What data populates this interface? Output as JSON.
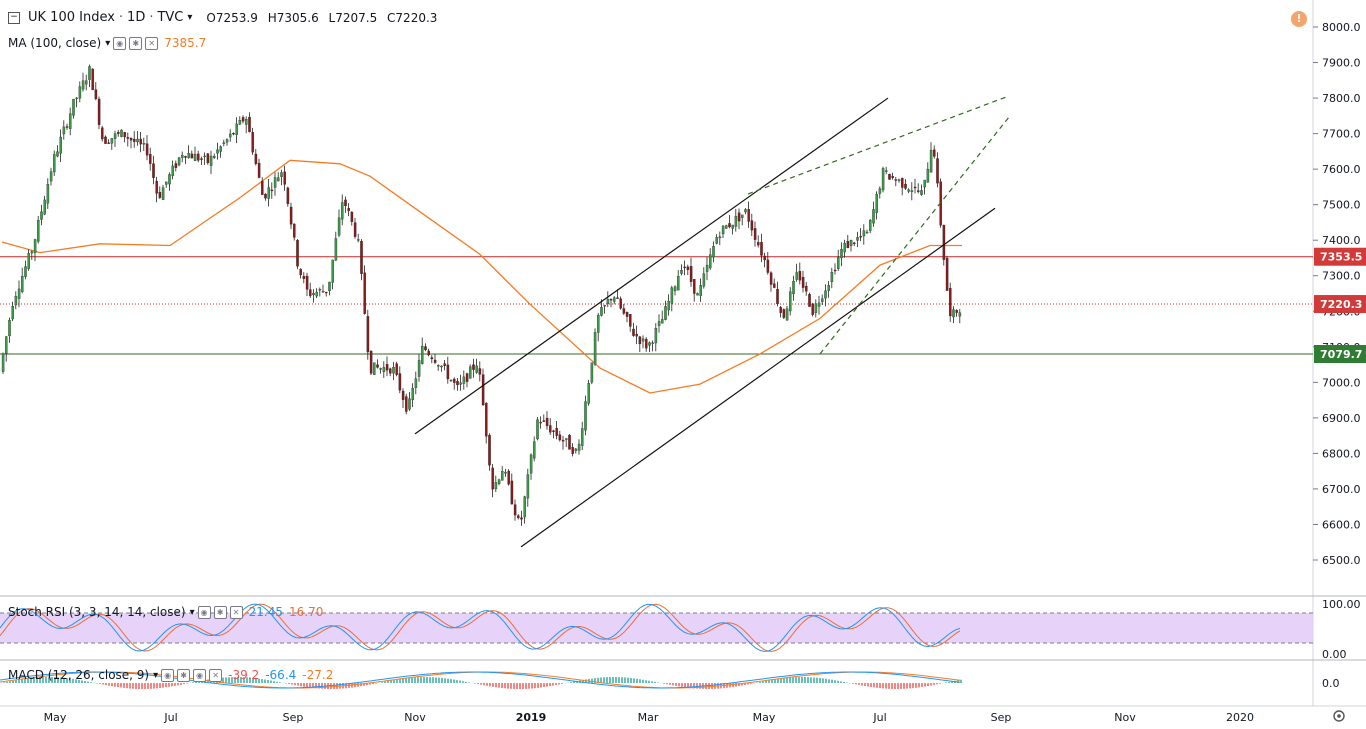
{
  "header": {
    "symbol": "UK 100 Index",
    "interval": "1D",
    "source": "TVC",
    "open": "O7253.9",
    "high": "H7305.6",
    "low": "L7207.5",
    "close": "C7220.3",
    "ma_label": "MA (100, close)",
    "ma_value": "7385.7",
    "warning_glyph": "!"
  },
  "indicators": {
    "stoch": {
      "label": "Stoch RSI (3, 3, 14, 14, close)",
      "k": "21.45",
      "d": "16.70"
    },
    "macd": {
      "label": "MACD (12, 26, close, 9)",
      "v1": "-39.2",
      "v2": "-66.4",
      "v3": "-27.2"
    }
  },
  "colors": {
    "up": "#26a69a",
    "up_body": "#3a9a47",
    "down": "#8b1a1a",
    "ma": "#f57c24",
    "stoch_k": "#2196f3",
    "stoch_d": "#ef6c3a",
    "stoch_band": "#e1c8f7",
    "price_tag": "#d23a3a",
    "support_tag": "#2e7d32"
  },
  "price_axis": {
    "ticks": [
      "8000.0",
      "7900.0",
      "7800.0",
      "7700.0",
      "7600.0",
      "7500.0",
      "7400.0",
      "7300.0",
      "7200.0",
      "7100.0",
      "7000.0",
      "6900.0",
      "6800.0",
      "6700.0",
      "6600.0",
      "6500.0"
    ],
    "tags": {
      "resistance": "7353.5",
      "last": "7220.3",
      "support": "7079.7"
    }
  },
  "stoch_axis": [
    "100.00",
    "0.00"
  ],
  "macd_axis": [
    "0.0"
  ],
  "time_axis": [
    "May",
    "Jul",
    "Sep",
    "Nov",
    "2019",
    "Mar",
    "May",
    "Jul",
    "Sep",
    "Nov",
    "2020"
  ],
  "icons": {
    "collapse": "square-minus-icon",
    "settings": "gear-icon",
    "eye": "eye-icon",
    "close": "close-icon"
  },
  "chart_data": {
    "type": "candlestick",
    "symbol": "UK 100 Index",
    "interval": "1D",
    "ylim": [
      6450,
      8050
    ],
    "moving_average": {
      "period": 100,
      "last": 7385.7
    },
    "levels": [
      7353.5,
      7220.3,
      7079.7
    ],
    "ma_path": [
      [
        2,
        7395
      ],
      [
        40,
        7365
      ],
      [
        100,
        7390
      ],
      [
        170,
        7385
      ],
      [
        240,
        7520
      ],
      [
        290,
        7625
      ],
      [
        340,
        7615
      ],
      [
        370,
        7580
      ],
      [
        420,
        7480
      ],
      [
        480,
        7360
      ],
      [
        530,
        7220
      ],
      [
        600,
        7040
      ],
      [
        650,
        6970
      ],
      [
        700,
        6995
      ],
      [
        760,
        7080
      ],
      [
        820,
        7180
      ],
      [
        880,
        7330
      ],
      [
        930,
        7385
      ],
      [
        962,
        7385
      ]
    ],
    "candle_path": [
      [
        2,
        7030
      ],
      [
        15,
        7230
      ],
      [
        35,
        7380
      ],
      [
        55,
        7620
      ],
      [
        75,
        7780
      ],
      [
        92,
        7880
      ],
      [
        105,
        7680
      ],
      [
        125,
        7700
      ],
      [
        150,
        7650
      ],
      [
        160,
        7520
      ],
      [
        185,
        7650
      ],
      [
        210,
        7620
      ],
      [
        235,
        7700
      ],
      [
        248,
        7750
      ],
      [
        265,
        7520
      ],
      [
        285,
        7600
      ],
      [
        300,
        7330
      ],
      [
        310,
        7250
      ],
      [
        330,
        7260
      ],
      [
        345,
        7520
      ],
      [
        360,
        7400
      ],
      [
        372,
        7040
      ],
      [
        395,
        7040
      ],
      [
        410,
        6920
      ],
      [
        425,
        7100
      ],
      [
        440,
        7060
      ],
      [
        460,
        6980
      ],
      [
        480,
        7060
      ],
      [
        495,
        6700
      ],
      [
        505,
        6760
      ],
      [
        522,
        6590
      ],
      [
        540,
        6900
      ],
      [
        560,
        6850
      ],
      [
        580,
        6800
      ],
      [
        600,
        7180
      ],
      [
        615,
        7250
      ],
      [
        635,
        7140
      ],
      [
        650,
        7100
      ],
      [
        665,
        7180
      ],
      [
        685,
        7340
      ],
      [
        700,
        7240
      ],
      [
        720,
        7420
      ],
      [
        748,
        7480
      ],
      [
        770,
        7320
      ],
      [
        785,
        7180
      ],
      [
        800,
        7310
      ],
      [
        815,
        7200
      ],
      [
        830,
        7280
      ],
      [
        845,
        7380
      ],
      [
        870,
        7420
      ],
      [
        885,
        7590
      ],
      [
        905,
        7560
      ],
      [
        925,
        7530
      ],
      [
        935,
        7690
      ],
      [
        945,
        7380
      ],
      [
        952,
        7180
      ],
      [
        962,
        7210
      ]
    ],
    "stoch_rsi": {
      "k": 21.45,
      "d": 16.7
    },
    "macd": {
      "values": [
        -39.2,
        -66.4,
        -27.2
      ]
    }
  }
}
